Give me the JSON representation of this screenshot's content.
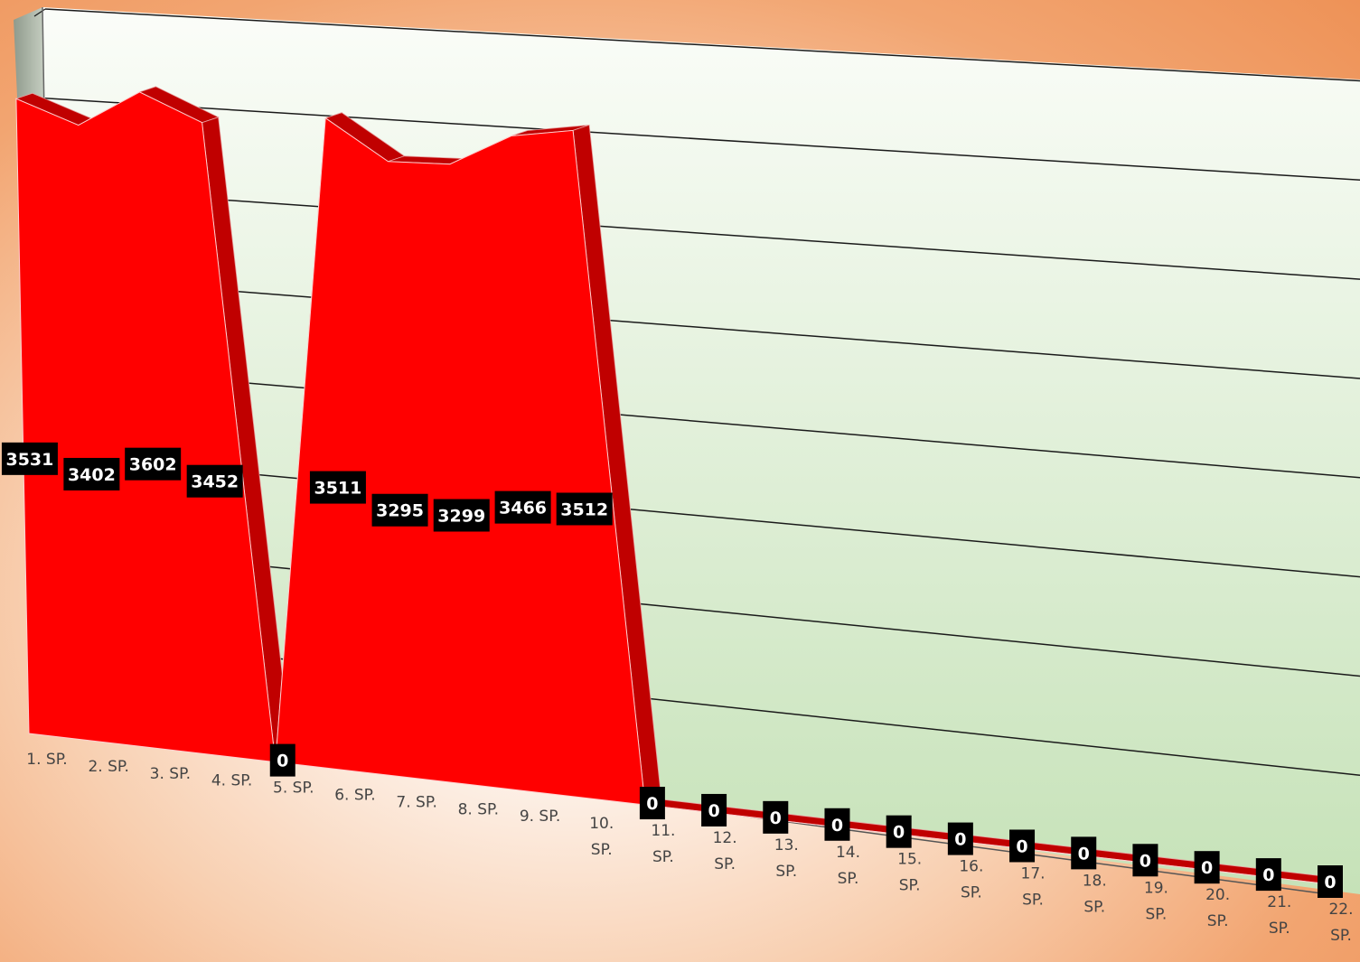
{
  "colors": {
    "area": "#ff0000",
    "area_top": "#c00000",
    "area_side": "#b00000",
    "label_bg": "#000000",
    "label_text": "#ffffff",
    "wall_top": "#fbfdf9",
    "wall_bottom": "#c6e2b8",
    "gridline": "#1a1a1a",
    "category_text": "#444444"
  },
  "chart_data": {
    "type": "area",
    "categories": [
      "1. SP.",
      "2. SP.",
      "3. SP.",
      "4. SP.",
      "5. SP.",
      "6. SP.",
      "7. SP.",
      "8. SP.",
      "9. SP.",
      "10. SP.",
      "11. SP.",
      "12. SP.",
      "13. SP.",
      "14. SP.",
      "15. SP.",
      "16. SP.",
      "17. SP.",
      "18. SP.",
      "19. SP.",
      "20. SP.",
      "21. SP.",
      "22. SP."
    ],
    "values": [
      3531,
      3402,
      3602,
      3452,
      0,
      3511,
      3295,
      3299,
      3466,
      3512,
      0,
      0,
      0,
      0,
      0,
      0,
      0,
      0,
      0,
      0,
      0,
      0
    ],
    "data_labels": [
      "3531",
      "3402",
      "3602",
      "3452",
      "0",
      "3511",
      "3295",
      "3299",
      "3466",
      "3512",
      "0",
      "0",
      "0",
      "0",
      "0",
      "0",
      "0",
      "0",
      "0",
      "0",
      "0",
      "0"
    ],
    "ylim": [
      0,
      4000
    ],
    "grid": true,
    "legend": "none",
    "style": "3d"
  }
}
